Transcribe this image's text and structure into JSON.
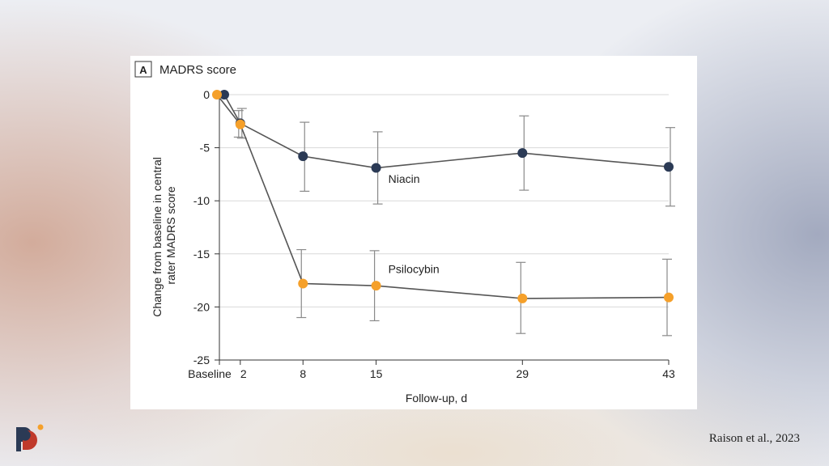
{
  "panel_letter": "A",
  "citation": "Raison et al., 2023",
  "colors": {
    "niacin": "#2b3a55",
    "psilocybin": "#f5a02a",
    "line": "#555555",
    "grid": "#d9d9d9",
    "errorbar": "#8a8a8a"
  },
  "logo": {
    "name": "brand-logo",
    "colors": [
      "#2b3a55",
      "#c0392b",
      "#f5a02a"
    ]
  },
  "chart_data": {
    "type": "line",
    "title": "MADRS score",
    "xlabel": "Follow-up, d",
    "ylabel": "Change from baseline in central rater MADRS score",
    "ylabel_lines": [
      "Change from baseline in central",
      "rater MADRS score"
    ],
    "x_ticks": [
      {
        "value": 0,
        "label": "Baseline"
      },
      {
        "value": 2,
        "label": "2"
      },
      {
        "value": 8,
        "label": "8"
      },
      {
        "value": 15,
        "label": "15"
      },
      {
        "value": 29,
        "label": "29"
      },
      {
        "value": 43,
        "label": "43"
      }
    ],
    "y_ticks": [
      0,
      -5,
      -10,
      -15,
      -20,
      -25
    ],
    "xlim": [
      0,
      43
    ],
    "ylim": [
      -25,
      0
    ],
    "grid": "horizontal",
    "series": [
      {
        "name": "Niacin",
        "color": "#2b3a55",
        "x": [
          0,
          2,
          8,
          15,
          29,
          43
        ],
        "y": [
          0,
          -2.7,
          -5.8,
          -6.9,
          -5.5,
          -6.8
        ],
        "err_low": [
          0,
          -4.1,
          -9.1,
          -10.3,
          -9.0,
          -10.5
        ],
        "err_high": [
          0,
          -1.3,
          -2.6,
          -3.5,
          -2.0,
          -3.1
        ]
      },
      {
        "name": "Psilocybin",
        "color": "#f5a02a",
        "x": [
          0,
          2,
          8,
          15,
          29,
          43
        ],
        "y": [
          0,
          -2.8,
          -17.8,
          -18.0,
          -19.2,
          -19.1
        ],
        "err_low": [
          0,
          -4.0,
          -21.0,
          -21.3,
          -22.5,
          -22.7
        ],
        "err_high": [
          0,
          -1.5,
          -14.6,
          -14.7,
          -15.8,
          -15.5
        ]
      }
    ]
  }
}
